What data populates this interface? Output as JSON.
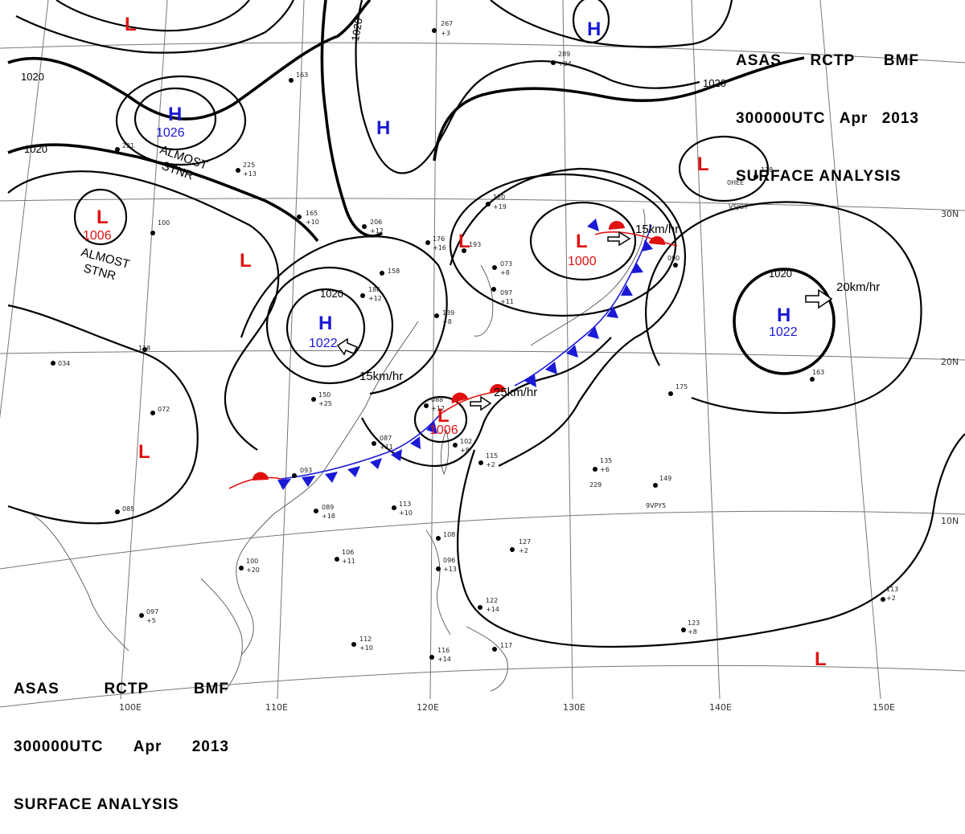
{
  "header": {
    "agency_code": "ASAS",
    "station_code": "RCTP",
    "issuer_code": "BMF",
    "valid_time": "300000UTC",
    "month": "Apr",
    "year": "2013",
    "product_title": "SURFACE ANALYSIS"
  },
  "grid_labels": {
    "longitudes": [
      "100E",
      "110E",
      "120E",
      "130E",
      "140E",
      "150E"
    ],
    "latitudes": [
      "20N",
      "10N",
      "30N"
    ]
  },
  "isobar_labels": [
    "1020",
    "1020",
    "1020",
    "1020",
    "1020",
    "1020"
  ],
  "pressure_centers": [
    {
      "type": "H",
      "value": "1026"
    },
    {
      "type": "L",
      "value": "1006"
    },
    {
      "type": "H",
      "value": "1022"
    },
    {
      "type": "L",
      "value": "1006"
    },
    {
      "type": "L",
      "value": "1000"
    },
    {
      "type": "H",
      "value": "1022"
    },
    {
      "type": "H",
      "value": ""
    },
    {
      "type": "H",
      "value": ""
    },
    {
      "type": "L",
      "value": ""
    },
    {
      "type": "L",
      "value": ""
    },
    {
      "type": "L",
      "value": ""
    },
    {
      "type": "L",
      "value": ""
    },
    {
      "type": "L",
      "value": ""
    }
  ],
  "notes": {
    "almost_stnr_1": [
      "ALMOST",
      "STNR"
    ],
    "almost_stnr_2": [
      "ALMOST",
      "STNR"
    ]
  },
  "motion_vectors": [
    "15km/hr",
    "25km/hr",
    "15km/hr",
    "20km/hr"
  ],
  "colors": {
    "high": "#1a1ad6",
    "low": "#e01010",
    "cold_front": "#1a1ad6",
    "warm_front": "#e01010",
    "isobar": "#000000",
    "grid": "#777777"
  },
  "station_samples": [
    "267",
    "+3",
    "289",
    "+24",
    "120",
    "+19",
    "163",
    "225",
    "+13",
    "221",
    "165",
    "+10",
    "206",
    "+12",
    "186",
    "+12",
    "193",
    "176",
    "+16",
    "158",
    "139",
    "+8",
    "073",
    "+8",
    "097",
    "+11",
    "150",
    "+25",
    "087",
    "+11",
    "093",
    "089",
    "+18",
    "106",
    "+11",
    "100",
    "+20",
    "097",
    "+5",
    "112",
    "+10",
    "116",
    "+14",
    "115",
    "+2",
    "113",
    "+10",
    "135",
    "+6",
    "149",
    "127",
    "+2",
    "175",
    "163",
    "113",
    "+2",
    "122",
    "+14",
    "117",
    "108",
    "096",
    "+13",
    "102",
    "+8",
    "123",
    "+8",
    "088",
    "+12",
    "072",
    "085",
    "034",
    "118",
    "100",
    "118",
    "090",
    "229",
    "9VPY5",
    "VSJG7",
    "0HEE"
  ]
}
